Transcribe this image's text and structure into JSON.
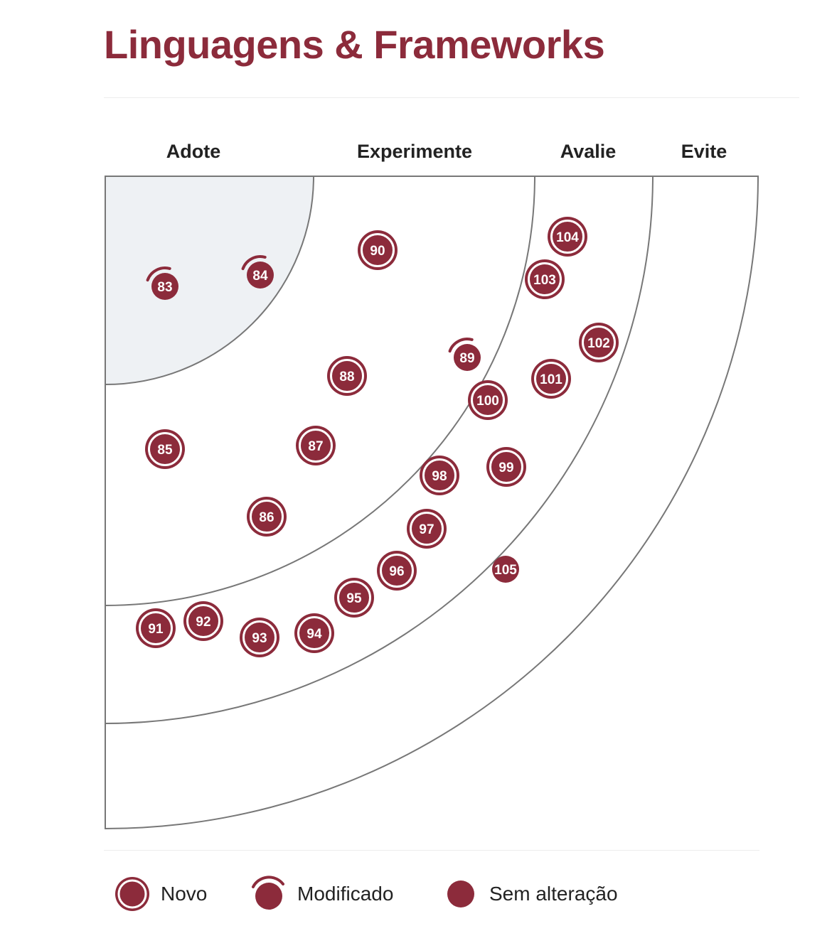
{
  "title": "Linguagens & Frameworks",
  "rings": [
    {
      "id": "adopt",
      "label": "Adote"
    },
    {
      "id": "trial",
      "label": "Experimente"
    },
    {
      "id": "assess",
      "label": "Avalie"
    },
    {
      "id": "hold",
      "label": "Evite"
    }
  ],
  "colors": {
    "accent": "#8c2b3b",
    "inner_ring_fill": "#eef1f4",
    "ring_stroke": "#777777",
    "label_text": "#222222"
  },
  "legend": [
    {
      "type": "new",
      "label": "Novo"
    },
    {
      "type": "moved",
      "label": "Modificado"
    },
    {
      "type": "unchanged",
      "label": "Sem alteração"
    }
  ],
  "blips": [
    {
      "id": "83",
      "type": "moved",
      "ring": "adopt"
    },
    {
      "id": "84",
      "type": "moved",
      "ring": "adopt"
    },
    {
      "id": "85",
      "type": "new",
      "ring": "trial"
    },
    {
      "id": "86",
      "type": "new",
      "ring": "trial"
    },
    {
      "id": "87",
      "type": "new",
      "ring": "trial"
    },
    {
      "id": "88",
      "type": "new",
      "ring": "trial"
    },
    {
      "id": "89",
      "type": "moved",
      "ring": "trial"
    },
    {
      "id": "90",
      "type": "new",
      "ring": "trial"
    },
    {
      "id": "91",
      "type": "new",
      "ring": "assess"
    },
    {
      "id": "92",
      "type": "new",
      "ring": "assess"
    },
    {
      "id": "93",
      "type": "new",
      "ring": "assess"
    },
    {
      "id": "94",
      "type": "new",
      "ring": "assess"
    },
    {
      "id": "95",
      "type": "new",
      "ring": "assess"
    },
    {
      "id": "96",
      "type": "new",
      "ring": "assess"
    },
    {
      "id": "97",
      "type": "new",
      "ring": "assess"
    },
    {
      "id": "98",
      "type": "new",
      "ring": "assess"
    },
    {
      "id": "99",
      "type": "new",
      "ring": "assess"
    },
    {
      "id": "100",
      "type": "new",
      "ring": "assess"
    },
    {
      "id": "101",
      "type": "new",
      "ring": "assess"
    },
    {
      "id": "102",
      "type": "new",
      "ring": "assess"
    },
    {
      "id": "103",
      "type": "new",
      "ring": "assess"
    },
    {
      "id": "104",
      "type": "new",
      "ring": "assess"
    },
    {
      "id": "105",
      "type": "unchanged",
      "ring": "hold"
    }
  ]
}
